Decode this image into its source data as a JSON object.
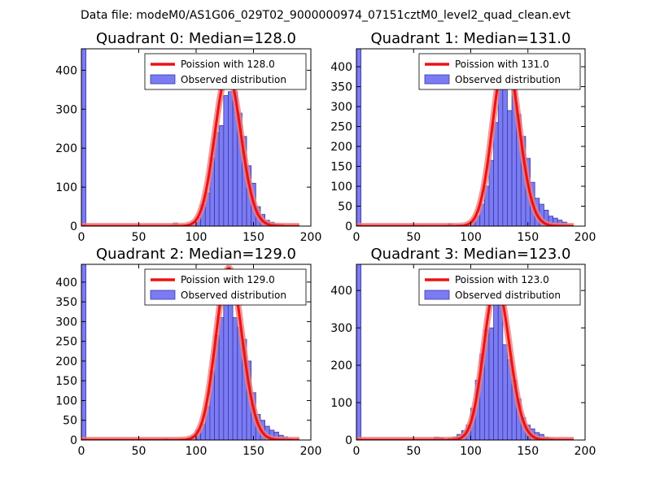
{
  "figure": {
    "suptitle": "Data file: modeM0/AS1G06_029T02_9000000974_07151cztM0_level2_quad_clean.evt",
    "colors": {
      "bar_fill": "#7b7bf6",
      "bar_edge": "#3a3a9a",
      "curve": "#ee1111",
      "curve_glow": "#f08080"
    }
  },
  "chart_data": [
    {
      "type": "bar",
      "title": "Quadrant 0: Median=128.0",
      "legend": {
        "curve": "Poission with 128.0",
        "bars": "Observed distribution",
        "placement": "top-right"
      },
      "xlim": [
        0,
        200
      ],
      "ylim": [
        0,
        455
      ],
      "xticks": [
        0,
        50,
        100,
        150,
        200
      ],
      "yticks": [
        0,
        100,
        200,
        300,
        400
      ],
      "bin_width": 4,
      "bin_starts": [
        0,
        80,
        88,
        92,
        96,
        100,
        104,
        108,
        112,
        116,
        120,
        124,
        128,
        132,
        136,
        140,
        144,
        148,
        152,
        156,
        160,
        164,
        168,
        172,
        176,
        180
      ],
      "counts": [
        455,
        8,
        2,
        5,
        10,
        22,
        55,
        85,
        175,
        240,
        258,
        335,
        345,
        345,
        290,
        230,
        155,
        110,
        50,
        30,
        15,
        10,
        5,
        4,
        2,
        1
      ],
      "poisson_mean": 128.0
    },
    {
      "type": "bar",
      "title": "Quadrant 1: Median=131.0",
      "legend": {
        "curve": "Poission with 131.0",
        "bars": "Observed distribution",
        "placement": "top-right"
      },
      "xlim": [
        0,
        200
      ],
      "ylim": [
        0,
        445
      ],
      "xticks": [
        0,
        50,
        100,
        150,
        200
      ],
      "yticks": [
        0,
        50,
        100,
        150,
        200,
        250,
        300,
        350,
        400
      ],
      "bin_width": 4,
      "bin_starts": [
        0,
        80,
        88,
        96,
        100,
        104,
        108,
        112,
        116,
        120,
        124,
        128,
        132,
        136,
        140,
        144,
        148,
        152,
        156,
        160,
        164,
        168,
        172,
        176,
        180,
        184
      ],
      "counts": [
        445,
        6,
        3,
        5,
        12,
        25,
        55,
        100,
        165,
        260,
        345,
        410,
        290,
        355,
        280,
        225,
        170,
        110,
        70,
        55,
        40,
        25,
        20,
        15,
        10,
        3
      ],
      "poisson_mean": 131.0
    },
    {
      "type": "bar",
      "title": "Quadrant 2: Median=129.0",
      "legend": {
        "curve": "Poission with 129.0",
        "bars": "Observed distribution",
        "placement": "top-right"
      },
      "xlim": [
        0,
        200
      ],
      "ylim": [
        0,
        445
      ],
      "xticks": [
        0,
        50,
        100,
        150,
        200
      ],
      "yticks": [
        0,
        50,
        100,
        150,
        200,
        250,
        300,
        350,
        400
      ],
      "bin_width": 4,
      "bin_starts": [
        0,
        72,
        84,
        92,
        96,
        100,
        104,
        108,
        112,
        116,
        120,
        124,
        128,
        132,
        136,
        140,
        144,
        148,
        152,
        156,
        160,
        164,
        168,
        172,
        176,
        180
      ],
      "counts": [
        445,
        3,
        2,
        5,
        10,
        25,
        40,
        85,
        175,
        265,
        310,
        380,
        410,
        310,
        285,
        255,
        200,
        120,
        65,
        50,
        35,
        25,
        20,
        12,
        8,
        3
      ],
      "poisson_mean": 129.0
    },
    {
      "type": "bar",
      "title": "Quadrant 3: Median=123.0",
      "legend": {
        "curve": "Poission with 123.0",
        "bars": "Observed distribution",
        "placement": "top-right"
      },
      "xlim": [
        0,
        200
      ],
      "ylim": [
        0,
        470
      ],
      "xticks": [
        0,
        50,
        100,
        150,
        200
      ],
      "yticks": [
        0,
        100,
        200,
        300,
        400
      ],
      "bin_width": 4,
      "bin_starts": [
        0,
        68,
        72,
        80,
        84,
        88,
        92,
        96,
        100,
        104,
        108,
        112,
        116,
        120,
        124,
        128,
        132,
        136,
        140,
        144,
        148,
        152,
        156,
        160,
        164,
        168
      ],
      "counts": [
        470,
        8,
        6,
        4,
        8,
        15,
        25,
        40,
        85,
        160,
        230,
        295,
        300,
        435,
        380,
        255,
        215,
        160,
        110,
        60,
        40,
        30,
        20,
        15,
        8,
        4
      ],
      "poisson_mean": 123.0
    }
  ]
}
